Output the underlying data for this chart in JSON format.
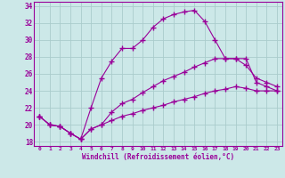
{
  "xlabel": "Windchill (Refroidissement éolien,°C)",
  "background_color": "#cce8e8",
  "grid_color": "#aacccc",
  "line_color": "#990099",
  "xlim": [
    -0.5,
    23.5
  ],
  "ylim": [
    17.5,
    34.5
  ],
  "xticks": [
    0,
    1,
    2,
    3,
    4,
    5,
    6,
    7,
    8,
    9,
    10,
    11,
    12,
    13,
    14,
    15,
    16,
    17,
    18,
    19,
    20,
    21,
    22,
    23
  ],
  "yticks": [
    18,
    20,
    22,
    24,
    26,
    28,
    30,
    32,
    34
  ],
  "line_top_x": [
    0,
    1,
    2,
    3,
    4,
    5,
    6,
    7,
    8,
    9,
    10,
    11,
    12,
    13,
    14,
    15,
    16,
    17,
    18,
    19,
    20,
    21,
    22,
    23
  ],
  "line_top_y": [
    21.0,
    20.0,
    19.8,
    19.0,
    18.3,
    22.0,
    25.5,
    27.5,
    29.0,
    29.0,
    30.0,
    31.5,
    32.5,
    33.0,
    33.3,
    33.5,
    32.2,
    30.0,
    27.8,
    27.8,
    27.8,
    25.0,
    24.5,
    24.0
  ],
  "line_mid_x": [
    0,
    1,
    2,
    3,
    4,
    5,
    6,
    7,
    8,
    9,
    10,
    11,
    12,
    13,
    14,
    15,
    16,
    17,
    18,
    19,
    20,
    21,
    22,
    23
  ],
  "line_mid_y": [
    21.0,
    20.0,
    19.8,
    19.0,
    18.3,
    19.5,
    20.0,
    21.5,
    22.5,
    23.0,
    23.8,
    24.5,
    25.2,
    25.7,
    26.2,
    26.8,
    27.3,
    27.8,
    27.8,
    27.8,
    27.0,
    25.5,
    25.0,
    24.5
  ],
  "line_bot_x": [
    0,
    1,
    2,
    3,
    4,
    5,
    6,
    7,
    8,
    9,
    10,
    11,
    12,
    13,
    14,
    15,
    16,
    17,
    18,
    19,
    20,
    21,
    22,
    23
  ],
  "line_bot_y": [
    21.0,
    20.0,
    19.8,
    19.0,
    18.3,
    19.5,
    20.0,
    20.5,
    21.0,
    21.3,
    21.7,
    22.0,
    22.3,
    22.7,
    23.0,
    23.3,
    23.7,
    24.0,
    24.2,
    24.5,
    24.3,
    24.0,
    24.0,
    24.0
  ]
}
